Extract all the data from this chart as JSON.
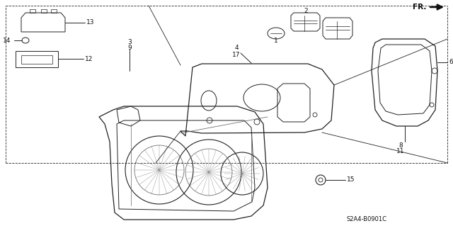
{
  "diagram_code": "S2A4-B0901C",
  "background_color": "#ffffff",
  "fig_width": 6.4,
  "fig_height": 3.19,
  "dpi": 100
}
